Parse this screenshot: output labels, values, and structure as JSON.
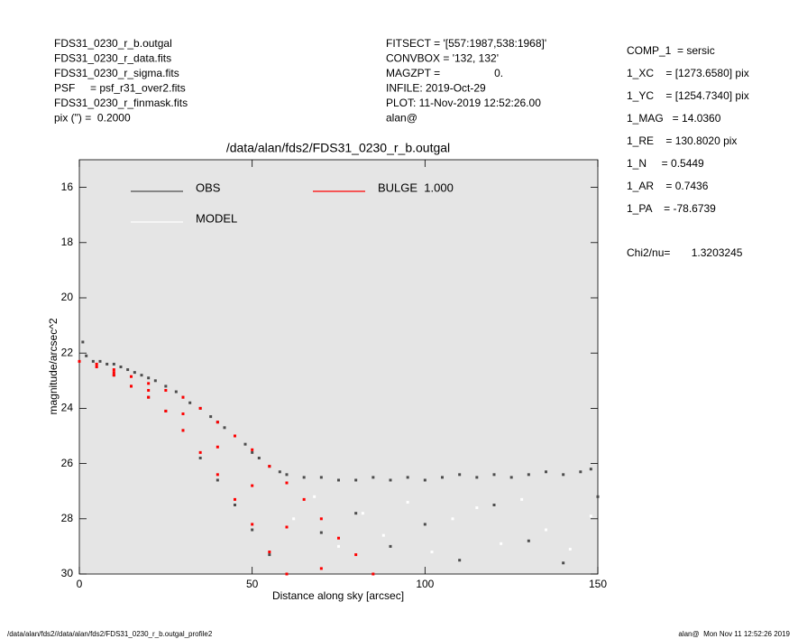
{
  "header": {
    "left": [
      "FDS31_0230_r_b.outgal",
      "FDS31_0230_r_data.fits",
      "FDS31_0230_r_sigma.fits",
      "PSF     = psf_r31_over2.fits",
      "FDS31_0230_r_finmask.fits",
      "pix (\") =  0.2000"
    ],
    "middle": [
      "FITSECT = '[557:1987,538:1968]'",
      "CONVBOX = '132, 132'",
      "MAGZPT =                  0.",
      "INFILE: 2019-Oct-29",
      "PLOT: 11-Nov-2019 12:52:26.00",
      "alan@"
    ],
    "right": [
      "COMP_1  = sersic",
      "1_XC    = [1273.6580] pix",
      "1_YC    = [1254.7340] pix",
      "1_MAG   = 14.0360",
      "1_RE    = 130.8020 pix",
      "1_N     = 0.5449",
      "1_AR    = 0.7436",
      "1_PA    = -78.6739"
    ],
    "chi2": "Chi2/nu=       1.3203245"
  },
  "footer": {
    "left": "/data/alan/fds2//data/alan/fds2/FDS31_0230_r_b.outgal_profile2",
    "right": "alan@  Mon Nov 11 12:52:26 2019"
  },
  "chart_data": {
    "type": "scatter",
    "title": "/data/alan/fds2/FDS31_0230_r_b.outgal",
    "x_label": "Distance along sky [arcsec]",
    "y_label": "magnitude/arcsec^2",
    "xlim": [
      0,
      150
    ],
    "xticks": [
      0,
      50,
      100,
      150
    ],
    "ylim": [
      30,
      15
    ],
    "yticks": [
      16,
      18,
      20,
      22,
      24,
      26,
      28,
      30
    ],
    "grid": false,
    "series": [
      {
        "name": "OBS",
        "color": "#4d4d4d",
        "x": [
          1,
          2,
          4,
          6,
          8,
          10,
          12,
          14,
          16,
          18,
          20,
          22,
          25,
          28,
          30,
          32,
          35,
          38,
          40,
          42,
          45,
          48,
          50,
          52,
          55,
          58,
          60,
          65,
          70,
          75,
          80,
          85,
          90,
          95,
          100,
          105,
          110,
          115,
          120,
          125,
          130,
          135,
          140,
          145,
          148,
          10,
          15,
          20,
          25,
          30,
          35,
          40,
          45,
          50,
          55,
          70,
          80,
          90,
          100,
          110,
          120,
          130,
          140,
          150
        ],
        "values": [
          21.6,
          22.1,
          22.3,
          22.3,
          22.4,
          22.4,
          22.5,
          22.6,
          22.7,
          22.8,
          22.9,
          23.0,
          23.2,
          23.4,
          23.6,
          23.8,
          24.0,
          24.3,
          24.5,
          24.7,
          25.0,
          25.3,
          25.6,
          25.8,
          26.1,
          26.3,
          26.4,
          26.5,
          26.5,
          26.6,
          26.6,
          26.5,
          26.6,
          26.5,
          26.6,
          26.5,
          26.4,
          26.5,
          26.4,
          26.5,
          26.4,
          26.3,
          26.4,
          26.3,
          26.2,
          22.8,
          23.2,
          23.6,
          24.1,
          24.8,
          25.8,
          26.6,
          27.5,
          28.4,
          29.3,
          28.5,
          27.8,
          29.0,
          28.2,
          29.5,
          27.5,
          28.8,
          29.6,
          27.2
        ]
      },
      {
        "name": "MODEL",
        "color": "#ffffff",
        "x": [
          62,
          68,
          75,
          82,
          88,
          95,
          102,
          108,
          115,
          122,
          128,
          135,
          142,
          148
        ],
        "values": [
          28,
          27.2,
          29,
          27.8,
          28.6,
          27.4,
          29.2,
          28,
          27.6,
          28.9,
          27.3,
          28.4,
          29.1,
          27.9
        ]
      },
      {
        "name": "BULGE  1.000",
        "color": "#ff0000",
        "x": [
          0,
          5,
          10,
          15,
          20,
          25,
          30,
          35,
          40,
          45,
          50,
          55,
          60,
          65,
          70,
          75,
          80,
          85,
          5,
          10,
          15,
          20,
          25,
          30,
          35,
          40,
          45,
          50,
          55,
          60,
          10,
          20,
          30,
          40,
          50,
          60,
          70
        ],
        "values": [
          22.3,
          22.4,
          22.6,
          22.85,
          23.1,
          23.35,
          23.6,
          24.0,
          24.5,
          25.0,
          25.5,
          26.1,
          26.7,
          27.3,
          28.0,
          28.7,
          29.3,
          30.0,
          22.5,
          22.8,
          23.2,
          23.6,
          24.1,
          24.8,
          25.6,
          26.4,
          27.3,
          28.2,
          29.2,
          30.0,
          22.7,
          23.35,
          24.2,
          25.4,
          26.8,
          28.3,
          29.8
        ]
      }
    ]
  }
}
